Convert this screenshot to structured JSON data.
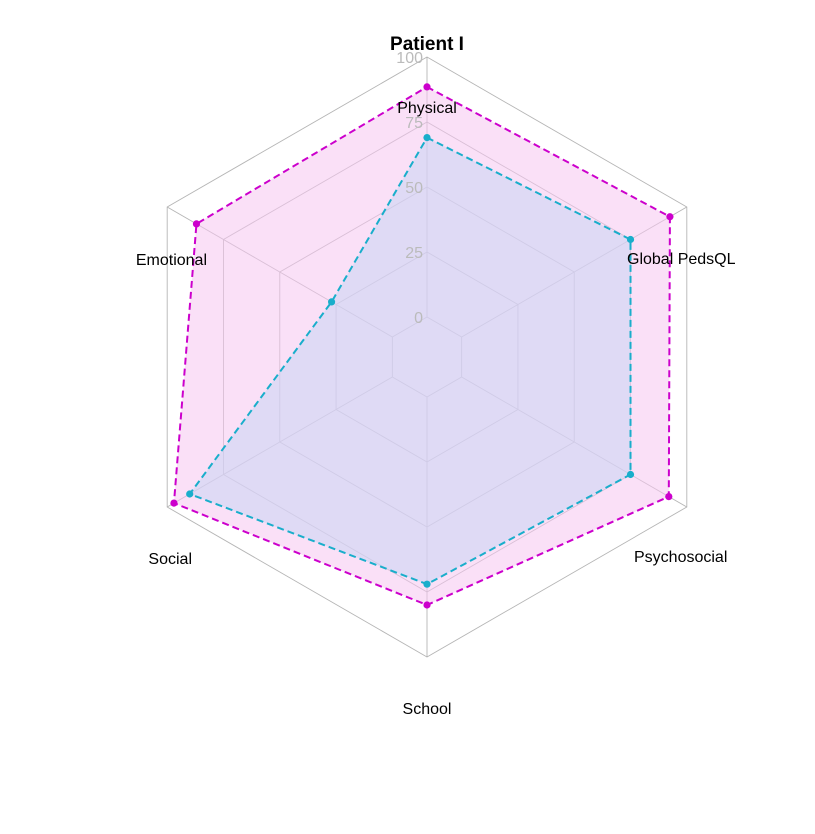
{
  "chart_data": {
    "type": "radar",
    "title": "Patient I",
    "axes": [
      "Physical",
      "Global PedsQL",
      "Psychosocial",
      "School",
      "Social",
      "Emotional"
    ],
    "range": [
      0,
      100
    ],
    "ticks": [
      "0",
      "25",
      "50",
      "75",
      "100"
    ],
    "grid": true,
    "legend": "none",
    "series": [
      {
        "values": [
          88.5,
          92.5,
          92,
          80,
          97,
          87
        ],
        "color": "#cc00cc",
        "fill": "#f5c6f0"
      },
      {
        "values": [
          69,
          75,
          75,
          72,
          90,
          27
        ],
        "color": "#19aecb",
        "fill": "#c8d6f4"
      }
    ]
  }
}
